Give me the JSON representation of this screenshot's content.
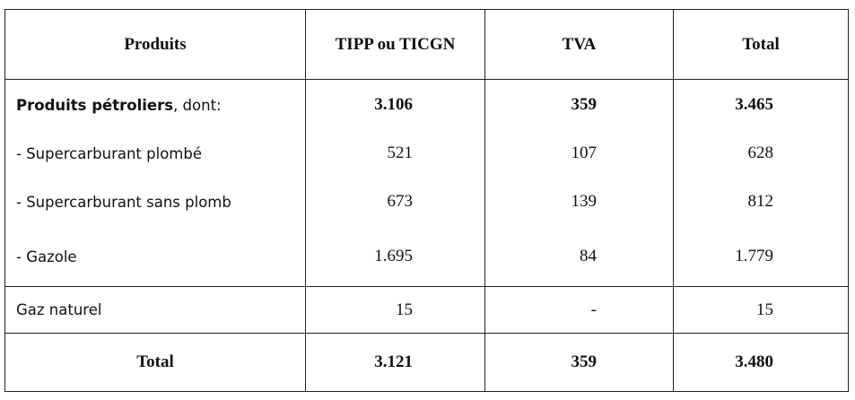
{
  "table": {
    "header": [
      "Produits",
      "TIPP ou TICGN",
      "TVA",
      "Total"
    ],
    "rows": [
      {
        "label": "Produits pétroliers",
        "label_suffix": ", dont:",
        "cells": [
          "3.106",
          "359",
          "3.465"
        ]
      },
      {
        "label": "- Supercarburant plombé",
        "cells": [
          "521",
          "107",
          "628"
        ]
      },
      {
        "label": "- Supercarburant sans plomb",
        "cells": [
          "673",
          "139",
          "812"
        ]
      },
      {
        "label": "- Gazole",
        "cells": [
          "1.695",
          "84",
          "1.779"
        ]
      },
      {
        "label": "Gaz naturel",
        "cells": [
          "15",
          "-",
          "15"
        ]
      }
    ],
    "total": {
      "label": "Total",
      "cells": [
        "3.121",
        "359",
        "3.480"
      ]
    }
  }
}
